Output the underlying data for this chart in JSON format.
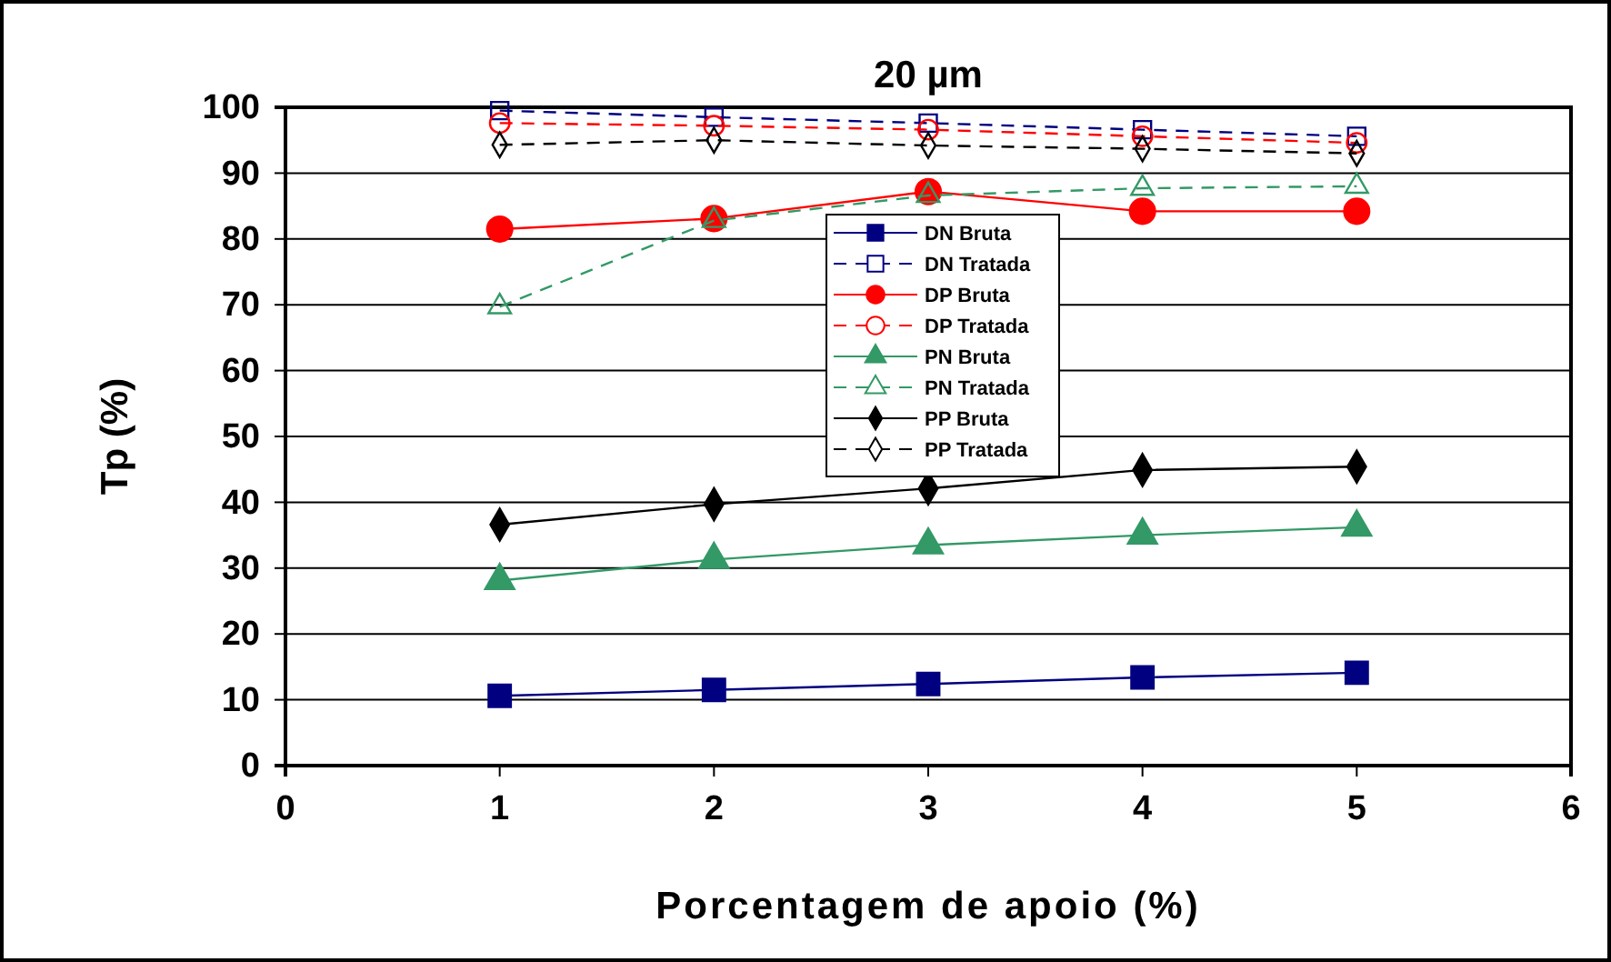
{
  "chart_data": {
    "type": "line",
    "title": "20 µm",
    "xlabel": "Porcentagem de apoio (%)",
    "ylabel": "Tp (%)",
    "x": [
      1,
      2,
      3,
      4,
      5
    ],
    "xlim": [
      0,
      6
    ],
    "xticks": [
      0,
      1,
      2,
      3,
      4,
      5,
      6
    ],
    "ylim": [
      0,
      100
    ],
    "yticks": [
      0,
      10,
      20,
      30,
      40,
      50,
      60,
      70,
      80,
      90,
      100
    ],
    "grid": "y",
    "legend": "top",
    "series": [
      {
        "name": "DN Bruta",
        "color": "#000080",
        "marker": "square",
        "line_style": "solid",
        "values": [
          10.6,
          11.5,
          12.4,
          13.4,
          14.1
        ]
      },
      {
        "name": "DN Tratada",
        "color": "#000080",
        "marker": "square",
        "line_style": "dashed",
        "values": [
          99.5,
          98.5,
          97.6,
          96.6,
          95.6
        ]
      },
      {
        "name": "DP Bruta",
        "color": "#ff0000",
        "marker": "circle",
        "line_style": "solid",
        "values": [
          81.5,
          83.1,
          87.2,
          84.2,
          84.2
        ]
      },
      {
        "name": "DP Tratada",
        "color": "#ff0000",
        "marker": "circle",
        "line_style": "dashed",
        "values": [
          97.6,
          97.2,
          96.6,
          95.6,
          94.6
        ]
      },
      {
        "name": "PN Bruta",
        "color": "#339966",
        "marker": "triangle",
        "line_style": "solid",
        "values": [
          28.1,
          31.3,
          33.5,
          35.0,
          36.2
        ]
      },
      {
        "name": "PN Tratada",
        "color": "#339966",
        "marker": "triangle",
        "line_style": "dashed",
        "values": [
          69.7,
          82.8,
          86.6,
          87.7,
          88.0
        ]
      },
      {
        "name": "PP Bruta",
        "color": "#000000",
        "marker": "diamond",
        "line_style": "solid",
        "values": [
          36.6,
          39.7,
          42.1,
          44.9,
          45.4
        ]
      },
      {
        "name": "PP Tratada",
        "color": "#000000",
        "marker": "diamond",
        "line_style": "dashed",
        "values": [
          94.3,
          95.0,
          94.2,
          93.7,
          93.0
        ]
      }
    ]
  }
}
